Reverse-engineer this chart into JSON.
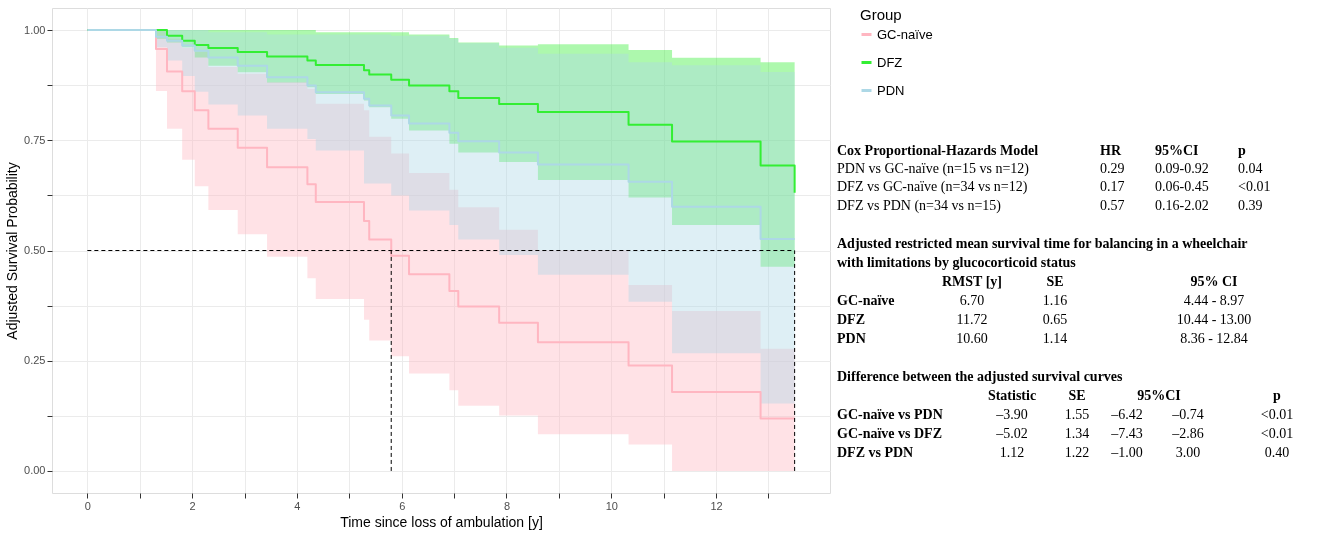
{
  "chart_data": [
    {
      "type": "step",
      "xlabel": "Time since loss of ambulation [y]",
      "ylabel": "Adjusted Survival Probability",
      "legend_title": "Group",
      "legend": "right",
      "grid": true,
      "x": [
        0,
        1.31,
        1.52,
        1.81,
        2.05,
        2.31,
        2.87,
        3.43,
        4.2,
        4.36,
        5.28,
        5.38,
        5.8,
        6.14,
        6.91,
        7.08,
        7.86,
        8.6,
        10.33,
        11.16,
        12.85,
        13.5
      ],
      "xlim": [
        -0.675,
        14.175
      ],
      "xticks": [
        0,
        {
          "value": 1,
          "label": null
        },
        2,
        {
          "value": 3,
          "label": null
        },
        4,
        {
          "value": 5,
          "label": null
        },
        6,
        {
          "value": 7,
          "label": null
        },
        8,
        {
          "value": 9,
          "label": null
        },
        10,
        {
          "value": 11,
          "label": null
        },
        12,
        {
          "value": 13,
          "label": null
        }
      ],
      "ylim": [
        -0.05,
        1.05
      ],
      "yticks": [
        {
          "value": 0,
          "label": "0.00"
        },
        {
          "value": 0.125,
          "label": null
        },
        {
          "value": 0.25,
          "label": "0.25"
        },
        {
          "value": 0.375,
          "label": null
        },
        {
          "value": 0.5,
          "label": "0.50"
        },
        {
          "value": 0.625,
          "label": null
        },
        {
          "value": 0.75,
          "label": "0.75"
        },
        {
          "value": 0.875,
          "label": null
        },
        {
          "value": 1,
          "label": "1.00"
        }
      ],
      "series": [
        {
          "name": "GC-naïve",
          "color": "#ffb6c1",
          "values": [
            1,
            0.957,
            0.906,
            0.861,
            0.818,
            0.776,
            0.733,
            0.689,
            0.65,
            0.61,
            0.567,
            0.525,
            0.488,
            0.446,
            0.408,
            0.373,
            0.336,
            0.292,
            0.239,
            0.179,
            0.119,
            0.119
          ],
          "lower": [
            1,
            0.862,
            0.776,
            0.706,
            0.646,
            0.592,
            0.537,
            0.486,
            0.437,
            0.39,
            0.343,
            0.296,
            0.26,
            0.221,
            0.183,
            0.148,
            0.126,
            0.083,
            0.06,
            0,
            0,
            0
          ],
          "upper": [
            1,
            1,
            0.98,
            0.96,
            0.95,
            0.916,
            0.901,
            0.882,
            0.867,
            0.833,
            0.818,
            0.758,
            0.72,
            0.676,
            0.638,
            0.598,
            0.547,
            0.501,
            0.422,
            0.363,
            0.277,
            0.277
          ]
        },
        {
          "name": "DFZ",
          "color": "#33ee33",
          "values": [
            1,
            1,
            0.987,
            0.976,
            0.966,
            0.959,
            0.95,
            0.94,
            0.931,
            0.921,
            0.909,
            0.899,
            0.887,
            0.874,
            0.861,
            0.846,
            0.832,
            0.814,
            0.785,
            0.747,
            0.693,
            0.631
          ],
          "lower": [
            1,
            0.98,
            0.972,
            0.961,
            0.938,
            0.919,
            0.904,
            0.881,
            0.87,
            0.855,
            0.84,
            0.825,
            0.799,
            0.772,
            0.742,
            0.722,
            0.701,
            0.66,
            0.62,
            0.558,
            0.463,
            0.463
          ],
          "upper": [
            1,
            1,
            1,
            1,
            1,
            1,
            1,
            1,
            1,
            0.995,
            0.995,
            0.995,
            0.995,
            0.99,
            0.982,
            0.972,
            0.965,
            0.968,
            0.955,
            0.937,
            0.927,
            0.927
          ]
        },
        {
          "name": "PDN",
          "color": "#add8e6",
          "values": [
            1,
            0.985,
            0.976,
            0.965,
            0.953,
            0.938,
            0.919,
            0.893,
            0.874,
            0.859,
            0.844,
            0.829,
            0.806,
            0.788,
            0.767,
            0.748,
            0.722,
            0.695,
            0.656,
            0.599,
            0.526,
            0.526
          ],
          "lower": [
            1,
            0.961,
            0.931,
            0.896,
            0.86,
            0.831,
            0.806,
            0.776,
            0.753,
            0.727,
            0.652,
            0.652,
            0.625,
            0.591,
            0.558,
            0.525,
            0.49,
            0.445,
            0.384,
            0.267,
            0.153,
            0.153
          ],
          "upper": [
            1,
            1,
            1,
            1,
            1,
            0.995,
            0.995,
            0.99,
            0.99,
            0.99,
            0.99,
            0.99,
            0.987,
            0.987,
            0.98,
            0.97,
            0.96,
            0.946,
            0.927,
            0.92,
            0.905,
            0.905
          ]
        }
      ],
      "ref_lines": [
        {
          "axis": "y",
          "value": 0.5,
          "color": "#000000",
          "line_style": "dashed"
        },
        {
          "axis": "x",
          "value": 5.8,
          "color": "#000000",
          "line_style": "dashed"
        },
        {
          "axis": "x",
          "value": 13.5,
          "color": "#000000",
          "line_style": "dashed"
        }
      ]
    },
    {
      "type": "other",
      "annotations": [
        "Cox Proportional-Hazards Model\tHR\t95%CI\tp",
        "PDN vs GC-naïve (n=15 vs n=12)\t0.29\t0.09-0.92\t0.04",
        "DFZ vs GC-naïve (n=34 vs n=12)\t0.17\t0.06-0.45\t<0.01",
        "DFZ vs PDN (n=34 vs n=15)\t0.57\t0.16-2.02\t0.39"
      ]
    },
    {
      "type": "other",
      "title": "Adjusted restricted mean survival time for balancing in a wheelchair with limitations by glucocorticoid status",
      "annotations": [
        "\tRMST [y]\tSE\t95% CI",
        "GC-naïve\t6.70\t1.16\t4.44 - 8.97",
        "DFZ\t11.72\t0.65\t10.44 -  13.00",
        "PDN\t10.60\t1.14\t8.36 - 12.84"
      ]
    },
    {
      "type": "other",
      "title": "Difference between the adjusted survival curves",
      "annotations": [
        "\tStatistic\tSE\t95%CI\tp",
        "GC-naïve vs PDN\t–3.90\t1.55\t–6.42\t–0.74\t<0.01",
        "GC-naïve vs DFZ\t–5.02\t1.34\t–7.43\t–2.86\t<0.01",
        "DFZ vs PDN\t1.12\t1.22\t–1.00\t3.00\t0.40"
      ]
    }
  ]
}
